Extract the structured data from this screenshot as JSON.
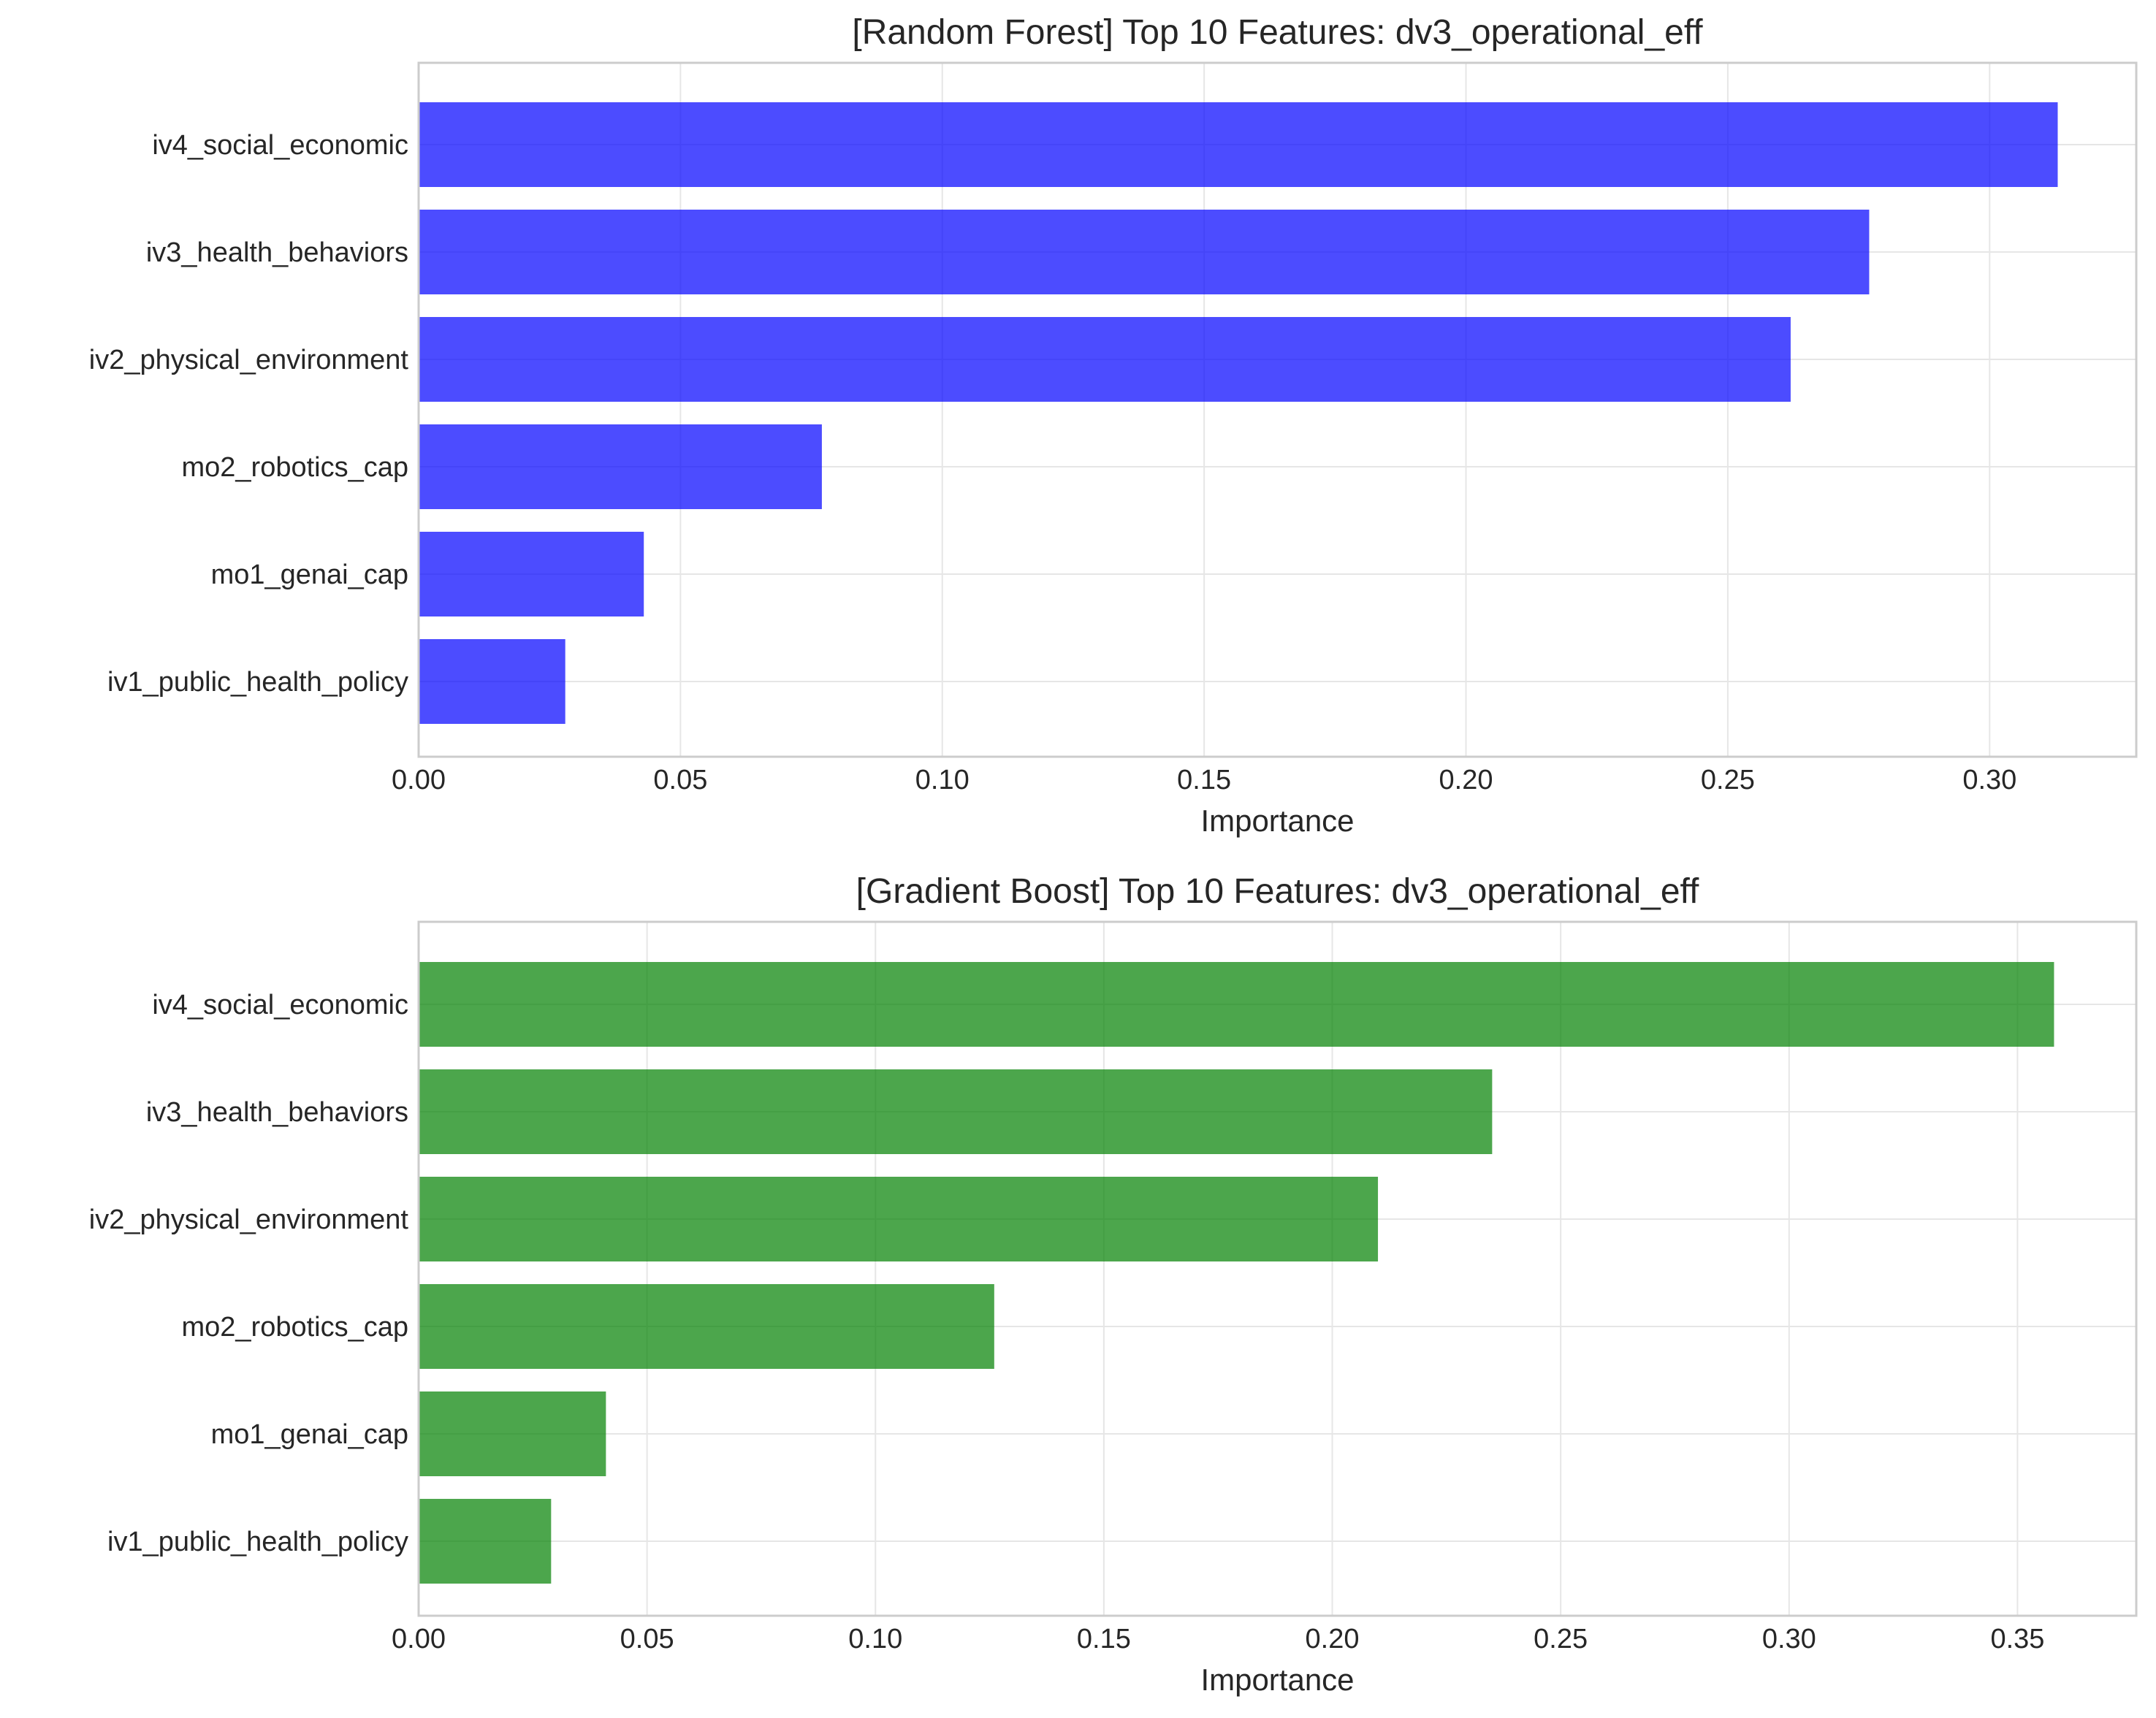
{
  "chart_data": [
    {
      "type": "bar",
      "orientation": "horizontal",
      "title": "[Random Forest] Top 10 Features: dv3_operational_eff",
      "xlabel": "Importance",
      "ylabel": "",
      "xlim": [
        0,
        0.328
      ],
      "xticks": [
        0.0,
        0.05,
        0.1,
        0.15,
        0.2,
        0.25,
        0.3
      ],
      "xtick_labels": [
        "0.00",
        "0.05",
        "0.10",
        "0.15",
        "0.20",
        "0.25",
        "0.30"
      ],
      "color": "#0000ff",
      "grid": true,
      "categories": [
        "iv4_social_economic",
        "iv3_health_behaviors",
        "iv2_physical_environment",
        "mo2_robotics_cap",
        "mo1_genai_cap",
        "iv1_public_health_policy"
      ],
      "values": [
        0.313,
        0.277,
        0.262,
        0.077,
        0.043,
        0.028
      ]
    },
    {
      "type": "bar",
      "orientation": "horizontal",
      "title": "[Gradient Boost] Top 10 Features: dv3_operational_eff",
      "xlabel": "Importance",
      "ylabel": "",
      "xlim": [
        0,
        0.376
      ],
      "xticks": [
        0.0,
        0.05,
        0.1,
        0.15,
        0.2,
        0.25,
        0.3,
        0.35
      ],
      "xtick_labels": [
        "0.00",
        "0.05",
        "0.10",
        "0.15",
        "0.20",
        "0.25",
        "0.30",
        "0.35"
      ],
      "color": "#008000",
      "grid": true,
      "categories": [
        "iv4_social_economic",
        "iv3_health_behaviors",
        "iv2_physical_environment",
        "mo2_robotics_cap",
        "mo1_genai_cap",
        "iv1_public_health_policy"
      ],
      "values": [
        0.358,
        0.235,
        0.21,
        0.126,
        0.041,
        0.029
      ]
    }
  ]
}
